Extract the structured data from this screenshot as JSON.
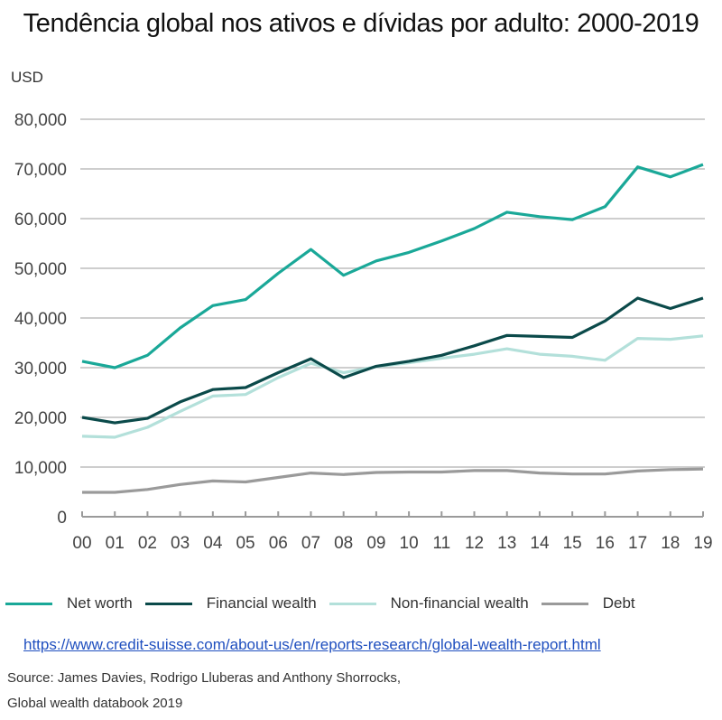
{
  "title": "Tendência global nos ativos e dívidas por adulto:  2000-2019",
  "unit_label": "USD",
  "colors": {
    "net_worth": "#1aa898",
    "financial_wealth": "#0b4a4a",
    "non_financial_wealth": "#b3e0da",
    "debt": "#9a9a9a",
    "grid": "#bdbdbd",
    "link": "#1f4fbf"
  },
  "legend": [
    {
      "label": "Net worth",
      "color": "#1aa898"
    },
    {
      "label": "Financial wealth",
      "color": "#0b4a4a"
    },
    {
      "label": "Non-financial wealth",
      "color": "#b3e0da"
    },
    {
      "label": "Debt",
      "color": "#9a9a9a"
    }
  ],
  "link_text": "https://www.credit-suisse.com/about-us/en/reports-research/global-wealth-report.html",
  "source_line1": "Source: James Davies, Rodrigo Lluberas and Anthony Shorrocks,",
  "source_line2": "Global wealth databook 2019",
  "chart_data": {
    "type": "line",
    "title": "Tendência global nos ativos e dívidas por adulto:  2000-2019",
    "xlabel": "",
    "ylabel": "USD",
    "x": [
      "00",
      "01",
      "02",
      "03",
      "04",
      "05",
      "06",
      "07",
      "08",
      "09",
      "10",
      "11",
      "12",
      "13",
      "14",
      "15",
      "16",
      "17",
      "18",
      "19"
    ],
    "ylim": [
      0,
      80000
    ],
    "yticks": [
      0,
      10000,
      20000,
      30000,
      40000,
      50000,
      60000,
      70000,
      80000
    ],
    "ytick_labels": [
      "0",
      "10,000",
      "20,000",
      "30,000",
      "40,000",
      "50,000",
      "60,000",
      "70,000",
      "80,000"
    ],
    "grid": true,
    "legend_position": "bottom",
    "series": [
      {
        "name": "Net worth",
        "color": "#1aa898",
        "values": [
          31300,
          30000,
          32500,
          38000,
          42500,
          43700,
          49000,
          53800,
          48600,
          51500,
          53200,
          55500,
          58000,
          61300,
          60400,
          59800,
          62400,
          70400,
          68400,
          70900
        ]
      },
      {
        "name": "Financial wealth",
        "color": "#0b4a4a",
        "values": [
          20000,
          18900,
          19800,
          23100,
          25600,
          26000,
          29000,
          31800,
          28000,
          30300,
          31300,
          32500,
          34400,
          36500,
          36300,
          36100,
          39400,
          44000,
          41900,
          44000
        ]
      },
      {
        "name": "Non-financial wealth",
        "color": "#b3e0da",
        "values": [
          16200,
          16000,
          18000,
          21200,
          24300,
          24600,
          28000,
          30900,
          29000,
          30200,
          31000,
          31900,
          32700,
          33800,
          32700,
          32300,
          31500,
          35900,
          35700,
          36400
        ]
      },
      {
        "name": "Debt",
        "color": "#9a9a9a",
        "values": [
          4900,
          4900,
          5500,
          6500,
          7200,
          7000,
          7900,
          8800,
          8500,
          8900,
          9000,
          9000,
          9300,
          9300,
          8800,
          8600,
          8600,
          9200,
          9500,
          9600
        ]
      }
    ]
  }
}
